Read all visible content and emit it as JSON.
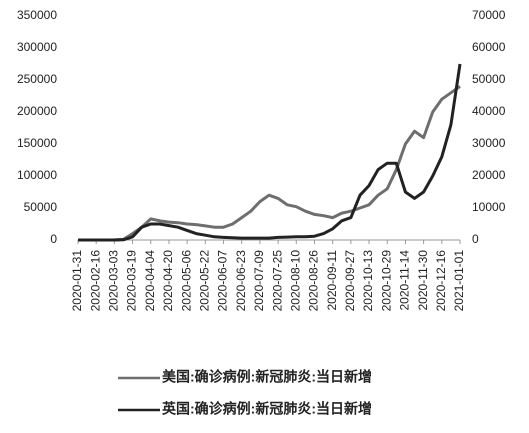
{
  "chart_data": {
    "type": "line",
    "x": [
      "2020-01-31",
      "2020-02-08",
      "2020-02-16",
      "2020-02-24",
      "2020-03-03",
      "2020-03-11",
      "2020-03-19",
      "2020-03-27",
      "2020-04-04",
      "2020-04-12",
      "2020-04-20",
      "2020-04-28",
      "2020-05-06",
      "2020-05-14",
      "2020-05-22",
      "2020-05-30",
      "2020-06-07",
      "2020-06-15",
      "2020-06-23",
      "2020-07-01",
      "2020-07-09",
      "2020-07-17",
      "2020-07-25",
      "2020-08-02",
      "2020-08-10",
      "2020-08-18",
      "2020-08-26",
      "2020-09-03",
      "2020-09-11",
      "2020-09-19",
      "2020-09-27",
      "2020-10-05",
      "2020-10-13",
      "2020-10-21",
      "2020-10-29",
      "2020-11-06",
      "2020-11-14",
      "2020-11-22",
      "2020-11-30",
      "2020-12-08",
      "2020-12-16",
      "2020-12-24",
      "2021-01-01"
    ],
    "series": [
      {
        "name": "美国:确诊病例:新冠肺炎:当日新增",
        "color": "#6e6e6e",
        "axis": "y",
        "values": [
          0,
          0,
          0,
          0,
          100,
          1000,
          10000,
          20000,
          33000,
          30000,
          28000,
          27000,
          25000,
          24000,
          22000,
          20000,
          20000,
          25000,
          35000,
          45000,
          60000,
          70000,
          65000,
          55000,
          52000,
          45000,
          40000,
          38000,
          35000,
          42000,
          45000,
          50000,
          55000,
          70000,
          80000,
          110000,
          150000,
          170000,
          160000,
          200000,
          220000,
          230000,
          240000
        ]
      },
      {
        "name": "英国:确诊病例:新冠肺炎:当日新增",
        "color": "#222222",
        "axis": "y2",
        "values": [
          0,
          0,
          0,
          0,
          0,
          50,
          1000,
          4000,
          5000,
          5000,
          4500,
          4000,
          3000,
          2000,
          1500,
          1000,
          800,
          700,
          600,
          600,
          600,
          600,
          800,
          900,
          1000,
          1000,
          1200,
          2000,
          3500,
          6000,
          7000,
          14000,
          17000,
          22000,
          24000,
          24000,
          15000,
          13000,
          15000,
          20000,
          26000,
          36000,
          55000
        ]
      }
    ],
    "xlim": [
      "2020-01-31",
      "2021-01-01"
    ],
    "xticks": [
      "2020-01-31",
      "2020-02-16",
      "2020-03-03",
      "2020-03-19",
      "2020-04-04",
      "2020-04-20",
      "2020-05-06",
      "2020-05-22",
      "2020-06-07",
      "2020-06-23",
      "2020-07-09",
      "2020-07-25",
      "2020-08-10",
      "2020-08-26",
      "2020-09-11",
      "2020-09-27",
      "2020-10-13",
      "2020-10-29",
      "2020-11-14",
      "2020-11-30",
      "2020-12-16",
      "2021-01-01"
    ],
    "ylim": [
      0,
      350000
    ],
    "yticks": [
      0,
      50000,
      100000,
      150000,
      200000,
      250000,
      300000,
      350000
    ],
    "y2lim": [
      0,
      70000
    ],
    "y2ticks": [
      0,
      10000,
      20000,
      30000,
      40000,
      50000,
      60000,
      70000
    ],
    "legend": "bottom"
  }
}
